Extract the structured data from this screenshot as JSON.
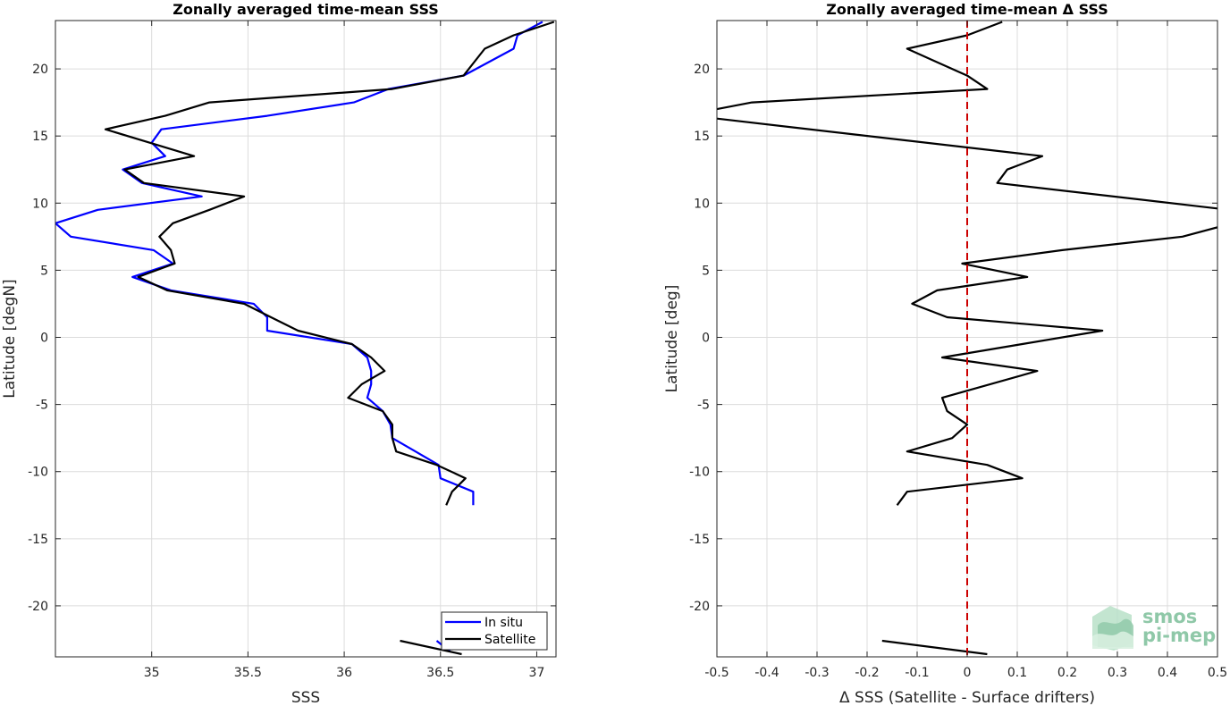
{
  "chart_data": [
    {
      "type": "line",
      "title": "Zonally averaged time-mean SSS",
      "xlabel": "SSS",
      "ylabel": "Latitude [degN]",
      "xlim": [
        34.5,
        37.1
      ],
      "ylim": [
        -23.8,
        23.6
      ],
      "xticks": [
        35,
        35.5,
        36,
        36.5,
        37
      ],
      "xtick_labels": [
        "35",
        "35.5",
        "36",
        "36.5",
        "37"
      ],
      "yticks": [
        -20,
        -15,
        -10,
        -5,
        0,
        5,
        10,
        15,
        20
      ],
      "ytick_labels": [
        "-20",
        "-15",
        "-10",
        "-5",
        "0",
        "5",
        "10",
        "15",
        "20"
      ],
      "grid": true,
      "legend": {
        "placement": "bottom-right",
        "entries": [
          "In situ",
          "Satellite"
        ]
      },
      "series": [
        {
          "name": "In situ",
          "color": "#0000ff",
          "segments": [
            [
              [
                37.03,
                23.5
              ],
              [
                36.9,
                22.5
              ],
              [
                36.88,
                21.5
              ],
              [
                36.62,
                19.5
              ],
              [
                36.23,
                18.5
              ],
              [
                36.05,
                17.5
              ],
              [
                35.6,
                16.5
              ],
              [
                35.05,
                15.5
              ],
              [
                35.0,
                14.5
              ],
              [
                35.07,
                13.5
              ],
              [
                34.85,
                12.5
              ],
              [
                34.95,
                11.5
              ],
              [
                35.26,
                10.5
              ],
              [
                34.72,
                9.5
              ],
              [
                34.5,
                8.5
              ],
              [
                34.58,
                7.5
              ],
              [
                35.01,
                6.5
              ],
              [
                35.11,
                5.5
              ],
              [
                34.9,
                4.5
              ],
              [
                35.1,
                3.5
              ],
              [
                35.53,
                2.5
              ],
              [
                35.6,
                1.5
              ],
              [
                35.6,
                0.5
              ],
              [
                36.04,
                -0.5
              ],
              [
                36.12,
                -1.5
              ],
              [
                36.14,
                -2.5
              ],
              [
                36.14,
                -3.5
              ],
              [
                36.12,
                -4.5
              ],
              [
                36.2,
                -5.5
              ],
              [
                36.24,
                -6.5
              ],
              [
                36.25,
                -7.5
              ],
              [
                36.37,
                -8.5
              ],
              [
                36.49,
                -9.5
              ],
              [
                36.5,
                -10.5
              ],
              [
                36.67,
                -11.5
              ],
              [
                36.67,
                -12.5
              ]
            ],
            [
              [
                36.48,
                -22.6
              ],
              [
                36.55,
                -23.4
              ]
            ]
          ]
        },
        {
          "name": "Satellite",
          "color": "#000000",
          "segments": [
            [
              [
                37.09,
                23.5
              ],
              [
                36.88,
                22.5
              ],
              [
                36.73,
                21.5
              ],
              [
                36.62,
                19.5
              ],
              [
                36.25,
                18.5
              ],
              [
                35.3,
                17.5
              ],
              [
                35.07,
                16.5
              ],
              [
                34.76,
                15.5
              ],
              [
                34.99,
                14.5
              ],
              [
                35.22,
                13.5
              ],
              [
                34.86,
                12.5
              ],
              [
                34.96,
                11.5
              ],
              [
                35.48,
                10.5
              ],
              [
                35.3,
                9.5
              ],
              [
                35.11,
                8.5
              ],
              [
                35.04,
                7.5
              ],
              [
                35.1,
                6.5
              ],
              [
                35.12,
                5.5
              ],
              [
                34.93,
                4.5
              ],
              [
                35.08,
                3.5
              ],
              [
                35.48,
                2.5
              ],
              [
                35.62,
                1.5
              ],
              [
                35.76,
                0.5
              ],
              [
                36.04,
                -0.5
              ],
              [
                36.14,
                -1.5
              ],
              [
                36.21,
                -2.5
              ],
              [
                36.09,
                -3.5
              ],
              [
                36.02,
                -4.5
              ],
              [
                36.2,
                -5.5
              ],
              [
                36.25,
                -6.5
              ],
              [
                36.25,
                -7.5
              ],
              [
                36.27,
                -8.5
              ],
              [
                36.48,
                -9.5
              ],
              [
                36.63,
                -10.5
              ],
              [
                36.56,
                -11.5
              ],
              [
                36.53,
                -12.5
              ]
            ],
            [
              [
                36.29,
                -22.6
              ],
              [
                36.61,
                -23.6
              ]
            ]
          ]
        }
      ]
    },
    {
      "type": "line",
      "title": "Zonally averaged time-mean Δ SSS",
      "xlabel": "Δ SSS (Satellite - Surface drifters)",
      "ylabel": "Latitude [deg]",
      "xlim": [
        -0.5,
        0.5
      ],
      "ylim": [
        -23.8,
        23.6
      ],
      "xticks": [
        -0.5,
        -0.4,
        -0.3,
        -0.2,
        -0.1,
        0,
        0.1,
        0.2,
        0.3,
        0.4,
        0.5
      ],
      "xtick_labels": [
        "-0.5",
        "-0.4",
        "-0.3",
        "-0.2",
        "-0.1",
        "0",
        "0.1",
        "0.2",
        "0.3",
        "0.4",
        "0.5"
      ],
      "yticks": [
        -20,
        -15,
        -10,
        -5,
        0,
        5,
        10,
        15,
        20
      ],
      "ytick_labels": [
        "-20",
        "-15",
        "-10",
        "-5",
        "0",
        "5",
        "10",
        "15",
        "20"
      ],
      "grid": true,
      "reference_line": {
        "x": 0,
        "color": "#cc0000",
        "style": "dashed"
      },
      "series": [
        {
          "color": "#000000",
          "segments": [
            [
              [
                0.07,
                23.5
              ],
              [
                0.0,
                22.5
              ],
              [
                -0.12,
                21.5
              ],
              [
                -0.06,
                20.5
              ],
              [
                0.0,
                19.5
              ],
              [
                0.04,
                18.5
              ],
              [
                -0.43,
                17.5
              ],
              [
                -0.5,
                17.0
              ]
            ],
            [
              [
                -0.5,
                16.3
              ],
              [
                0.15,
                13.5
              ],
              [
                0.08,
                12.5
              ],
              [
                0.06,
                11.5
              ],
              [
                0.5,
                9.6
              ]
            ],
            [
              [
                0.5,
                8.2
              ],
              [
                0.43,
                7.5
              ],
              [
                0.19,
                6.5
              ],
              [
                -0.01,
                5.5
              ],
              [
                0.12,
                4.5
              ],
              [
                -0.06,
                3.5
              ],
              [
                -0.11,
                2.5
              ],
              [
                -0.04,
                1.5
              ],
              [
                0.27,
                0.5
              ],
              [
                0.11,
                -0.5
              ],
              [
                -0.05,
                -1.5
              ],
              [
                0.14,
                -2.5
              ],
              [
                -0.05,
                -4.5
              ],
              [
                -0.04,
                -5.5
              ],
              [
                0.0,
                -6.5
              ],
              [
                -0.03,
                -7.5
              ],
              [
                -0.12,
                -8.5
              ],
              [
                0.04,
                -9.5
              ],
              [
                0.11,
                -10.5
              ],
              [
                -0.12,
                -11.5
              ],
              [
                -0.14,
                -12.5
              ]
            ],
            [
              [
                -0.17,
                -22.6
              ],
              [
                0.04,
                -23.6
              ]
            ]
          ]
        }
      ]
    }
  ],
  "logo": {
    "line1": "smos",
    "line2": "pi-mep"
  },
  "colors": {
    "in_situ": "#0000ff",
    "satellite": "#000000",
    "reference": "#cc0000",
    "logo": "#8fc8a8"
  }
}
